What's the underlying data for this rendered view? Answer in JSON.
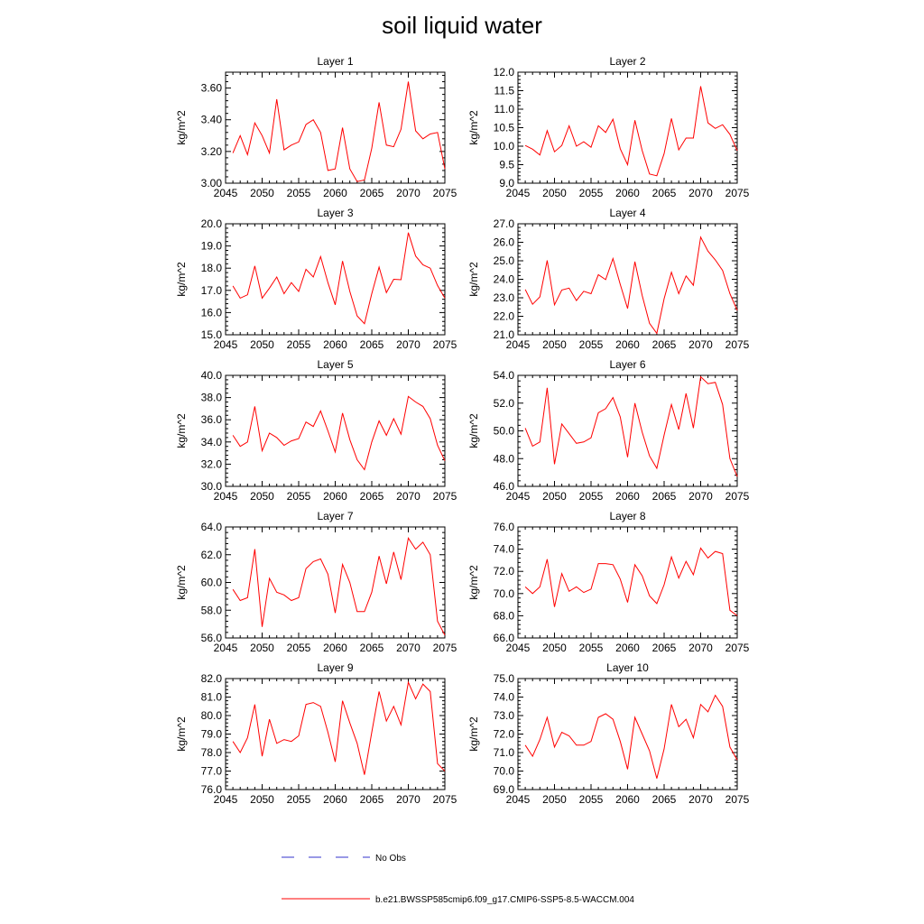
{
  "chart_data": {
    "type": "line",
    "title": "soil liquid water",
    "x": [
      2046,
      2047,
      2048,
      2049,
      2050,
      2051,
      2052,
      2053,
      2054,
      2055,
      2056,
      2057,
      2058,
      2059,
      2060,
      2061,
      2062,
      2063,
      2064,
      2065,
      2066,
      2067,
      2068,
      2069,
      2070,
      2071,
      2072,
      2073,
      2074,
      2075
    ],
    "xlim": [
      2045,
      2075
    ],
    "xticks": [
      "2045",
      "2050",
      "2055",
      "2060",
      "2065",
      "2070",
      "2075"
    ],
    "grid": false,
    "legend": {
      "items": [
        {
          "label": "No Obs",
          "color": "#3333cc",
          "style": "dashed"
        },
        {
          "label": "b.e21.BWSSP585cmip6.f09_g17.CMIP6-SSP5-8.5-WACCM.004",
          "color": "#ff0000",
          "style": "solid"
        }
      ]
    },
    "panels": [
      {
        "title": "Layer 1",
        "ylabel": "kg/m^2",
        "ylim": [
          3.0,
          3.7
        ],
        "yticks": [
          "3.00",
          "3.20",
          "3.40",
          "3.60"
        ],
        "series": [
          {
            "color": "#ff0000",
            "values": [
              3.19,
              3.3,
              3.18,
              3.38,
              3.3,
              3.19,
              3.53,
              3.21,
              3.24,
              3.26,
              3.37,
              3.4,
              3.32,
              3.08,
              3.09,
              3.35,
              3.09,
              3.01,
              3.02,
              3.22,
              3.51,
              3.24,
              3.23,
              3.34,
              3.64,
              3.33,
              3.28,
              3.31,
              3.32,
              3.09
            ]
          }
        ]
      },
      {
        "title": "Layer 2",
        "ylabel": "kg/m^2",
        "ylim": [
          9.0,
          12.0
        ],
        "yticks": [
          "9.0",
          "9.5",
          "10.0",
          "10.5",
          "11.0",
          "11.5",
          "12.0"
        ],
        "series": [
          {
            "color": "#ff0000",
            "values": [
              10.02,
              9.92,
              9.76,
              10.42,
              9.85,
              10.02,
              10.55,
              10.0,
              10.12,
              9.97,
              10.55,
              10.37,
              10.73,
              9.93,
              9.5,
              10.7,
              9.88,
              9.25,
              9.2,
              9.8,
              10.75,
              9.9,
              10.22,
              10.22,
              11.62,
              10.63,
              10.48,
              10.58,
              10.32,
              9.88
            ]
          }
        ]
      },
      {
        "title": "Layer 3",
        "ylabel": "kg/m^2",
        "ylim": [
          15.0,
          20.0
        ],
        "yticks": [
          "15.0",
          "16.0",
          "17.0",
          "18.0",
          "19.0",
          "20.0"
        ],
        "series": [
          {
            "color": "#ff0000",
            "values": [
              17.2,
              16.65,
              16.8,
              18.1,
              16.65,
              17.1,
              17.6,
              16.85,
              17.35,
              16.95,
              17.95,
              17.6,
              18.52,
              17.35,
              16.35,
              18.32,
              16.95,
              15.85,
              15.5,
              16.85,
              18.05,
              16.9,
              17.5,
              17.48,
              19.6,
              18.55,
              18.15,
              18.0,
              17.22,
              16.65
            ]
          }
        ]
      },
      {
        "title": "Layer 4",
        "ylabel": "kg/m^2",
        "ylim": [
          21.0,
          27.0
        ],
        "yticks": [
          "21.0",
          "22.0",
          "23.0",
          "24.0",
          "25.0",
          "26.0",
          "27.0"
        ],
        "series": [
          {
            "color": "#ff0000",
            "values": [
              23.45,
              22.65,
              23.05,
              25.02,
              22.62,
              23.42,
              23.52,
              22.85,
              23.35,
              23.22,
              24.25,
              23.98,
              25.12,
              23.72,
              22.42,
              24.95,
              23.12,
              21.62,
              21.08,
              22.95,
              24.38,
              23.22,
              24.18,
              23.68,
              26.28,
              25.52,
              25.05,
              24.48,
              23.22,
              22.32
            ]
          }
        ]
      },
      {
        "title": "Layer 5",
        "ylabel": "kg/m^2",
        "ylim": [
          30.0,
          40.0
        ],
        "yticks": [
          "30.0",
          "32.0",
          "34.0",
          "36.0",
          "38.0",
          "40.0"
        ],
        "series": [
          {
            "color": "#ff0000",
            "values": [
              34.6,
              33.6,
              34.0,
              37.2,
              33.2,
              34.8,
              34.4,
              33.7,
              34.1,
              34.3,
              35.8,
              35.4,
              36.8,
              35.0,
              33.1,
              36.6,
              34.2,
              32.4,
              31.5,
              34.0,
              35.9,
              34.6,
              36.1,
              34.7,
              38.1,
              37.6,
              37.2,
              36.1,
              33.7,
              32.3
            ]
          }
        ]
      },
      {
        "title": "Layer 6",
        "ylabel": "kg/m^2",
        "ylim": [
          46.0,
          54.0
        ],
        "yticks": [
          "46.0",
          "48.0",
          "50.0",
          "52.0",
          "54.0"
        ],
        "series": [
          {
            "color": "#ff0000",
            "values": [
              50.2,
              48.9,
              49.2,
              53.1,
              47.6,
              50.5,
              49.8,
              49.1,
              49.2,
              49.5,
              51.3,
              51.6,
              52.4,
              51.0,
              48.1,
              52.0,
              49.9,
              48.2,
              47.3,
              49.7,
              51.9,
              50.1,
              52.7,
              50.2,
              53.9,
              53.4,
              53.5,
              51.9,
              48.0,
              46.7
            ]
          }
        ]
      },
      {
        "title": "Layer 7",
        "ylabel": "kg/m^2",
        "ylim": [
          56.0,
          64.0
        ],
        "yticks": [
          "56.0",
          "58.0",
          "60.0",
          "62.0",
          "64.0"
        ],
        "series": [
          {
            "color": "#ff0000",
            "values": [
              59.5,
              58.7,
              58.9,
              62.4,
              56.8,
              60.3,
              59.3,
              59.1,
              58.7,
              58.9,
              61.0,
              61.5,
              61.7,
              60.6,
              57.8,
              61.3,
              60.0,
              57.9,
              57.9,
              59.3,
              61.9,
              59.9,
              62.2,
              60.2,
              63.2,
              62.4,
              62.9,
              62.0,
              57.2,
              56.2
            ]
          }
        ]
      },
      {
        "title": "Layer 8",
        "ylabel": "kg/m^2",
        "ylim": [
          66.0,
          76.0
        ],
        "yticks": [
          "66.0",
          "68.0",
          "70.0",
          "72.0",
          "74.0",
          "76.0"
        ],
        "series": [
          {
            "color": "#ff0000",
            "values": [
              70.6,
              70.0,
              70.6,
              73.1,
              68.8,
              71.8,
              70.2,
              70.6,
              70.1,
              70.4,
              72.7,
              72.7,
              72.6,
              71.3,
              69.2,
              72.6,
              71.6,
              69.8,
              69.1,
              70.8,
              73.3,
              71.4,
              72.9,
              71.7,
              74.1,
              73.2,
              73.8,
              73.6,
              68.5,
              68.0
            ]
          }
        ]
      },
      {
        "title": "Layer 9",
        "ylabel": "kg/m^2",
        "ylim": [
          76.0,
          82.0
        ],
        "yticks": [
          "76.0",
          "77.0",
          "78.0",
          "79.0",
          "80.0",
          "81.0",
          "82.0"
        ],
        "series": [
          {
            "color": "#ff0000",
            "values": [
              78.6,
              78.0,
              78.8,
              80.6,
              77.8,
              79.8,
              78.5,
              78.7,
              78.6,
              78.9,
              80.6,
              80.7,
              80.5,
              79.1,
              77.5,
              80.8,
              79.6,
              78.5,
              76.8,
              79.1,
              81.3,
              79.7,
              80.5,
              79.5,
              81.8,
              80.9,
              81.7,
              81.3,
              77.4,
              77.0
            ]
          }
        ]
      },
      {
        "title": "Layer 10",
        "ylabel": "kg/m^2",
        "ylim": [
          69.0,
          75.0
        ],
        "yticks": [
          "69.0",
          "70.0",
          "71.0",
          "72.0",
          "73.0",
          "74.0",
          "75.0"
        ],
        "series": [
          {
            "color": "#ff0000",
            "values": [
              71.4,
              70.8,
              71.7,
              72.9,
              71.3,
              72.1,
              71.9,
              71.4,
              71.4,
              71.6,
              72.9,
              73.1,
              72.8,
              71.6,
              70.1,
              72.9,
              72.0,
              71.1,
              69.6,
              71.2,
              73.6,
              72.4,
              72.8,
              71.8,
              73.6,
              73.2,
              74.1,
              73.5,
              71.3,
              70.6
            ]
          }
        ]
      }
    ]
  }
}
